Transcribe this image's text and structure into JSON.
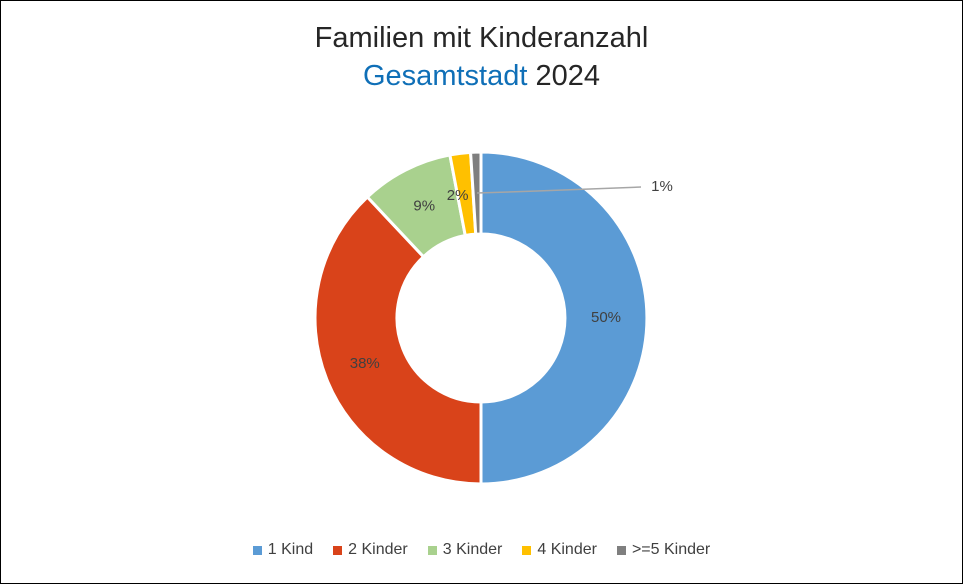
{
  "chart_data": {
    "type": "pie",
    "variant": "donut",
    "title": "Familien mit Kinderanzahl",
    "subtitle_area": "Gesamtstadt",
    "subtitle_year": "2024",
    "categories": [
      "1 Kind",
      "2 Kinder",
      "3 Kinder",
      "4 Kinder",
      ">=5 Kinder"
    ],
    "values": [
      50,
      38,
      9,
      2,
      1
    ],
    "labels": [
      "50%",
      "38%",
      "9%",
      "2%",
      "1%"
    ],
    "colors": [
      "#5b9bd5",
      "#d9431a",
      "#a9d18e",
      "#ffc000",
      "#7f7f7f"
    ],
    "legend_position": "bottom"
  }
}
